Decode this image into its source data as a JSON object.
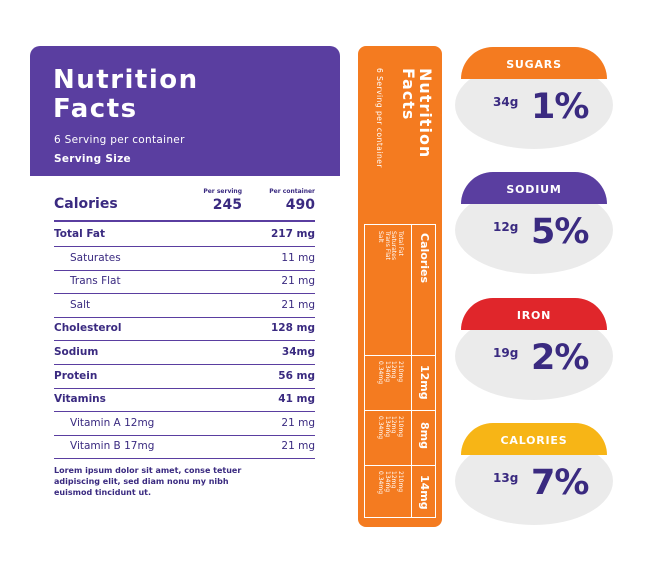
{
  "panel": {
    "title": "Nutrition\nFacts",
    "serving": "6 Serving per container",
    "serving_size": "Serving Size",
    "calories_label": "Calories",
    "per_serving_label": "Per serving",
    "per_container_label": "Per container",
    "per_serving_value": "245",
    "per_container_value": "490",
    "rows": [
      {
        "name": "Total Fat",
        "value": "217 mg",
        "bold": true
      },
      {
        "name": "Saturates",
        "value": "11 mg",
        "bold": false
      },
      {
        "name": "Trans Flat",
        "value": "21 mg",
        "bold": false
      },
      {
        "name": "Salt",
        "value": "21 mg",
        "bold": false
      },
      {
        "name": "Cholesterol",
        "value": "128 mg",
        "bold": true
      },
      {
        "name": "Sodium",
        "value": "34mg",
        "bold": true
      },
      {
        "name": "Protein",
        "value": "56 mg",
        "bold": true
      },
      {
        "name": "Vitamins",
        "value": "41 mg",
        "bold": true
      },
      {
        "name": "Vitamin A 12mg",
        "value": "21 mg",
        "bold": false
      },
      {
        "name": "Vitamin B 17mg",
        "value": "21 mg",
        "bold": false
      }
    ],
    "footnote": "Lorem ipsum dolor sit amet, conse tetuer adipiscing elit, sed diam nonu my nibh euismod tincidunt ut."
  },
  "strip": {
    "title": "Nutrition\nFacts",
    "serving": "6 Serving per container",
    "calories_label": "Calories",
    "header_items": "Total Fat\nSaturates\nTrans Flat\nSalt",
    "cells": [
      {
        "amounts": "210mg\n12mg\n134mg\n0.34mg",
        "calories": "12mg"
      },
      {
        "amounts": "210mg\n12mg\n134mg\n0.34mg",
        "calories": "8mg"
      },
      {
        "amounts": "210mg\n12mg\n134mg\n0.34mg",
        "calories": "14mg"
      }
    ]
  },
  "badges": [
    {
      "label": "SUGARS",
      "amount": "34g",
      "percent": "1%",
      "color": "#f47b20"
    },
    {
      "label": "SODIUM",
      "amount": "12g",
      "percent": "5%",
      "color": "#5a3ea0"
    },
    {
      "label": "IRON",
      "amount": "19g",
      "percent": "2%",
      "color": "#e0262b"
    },
    {
      "label": "CALORIES",
      "amount": "13g",
      "percent": "7%",
      "color": "#f7b516"
    }
  ]
}
